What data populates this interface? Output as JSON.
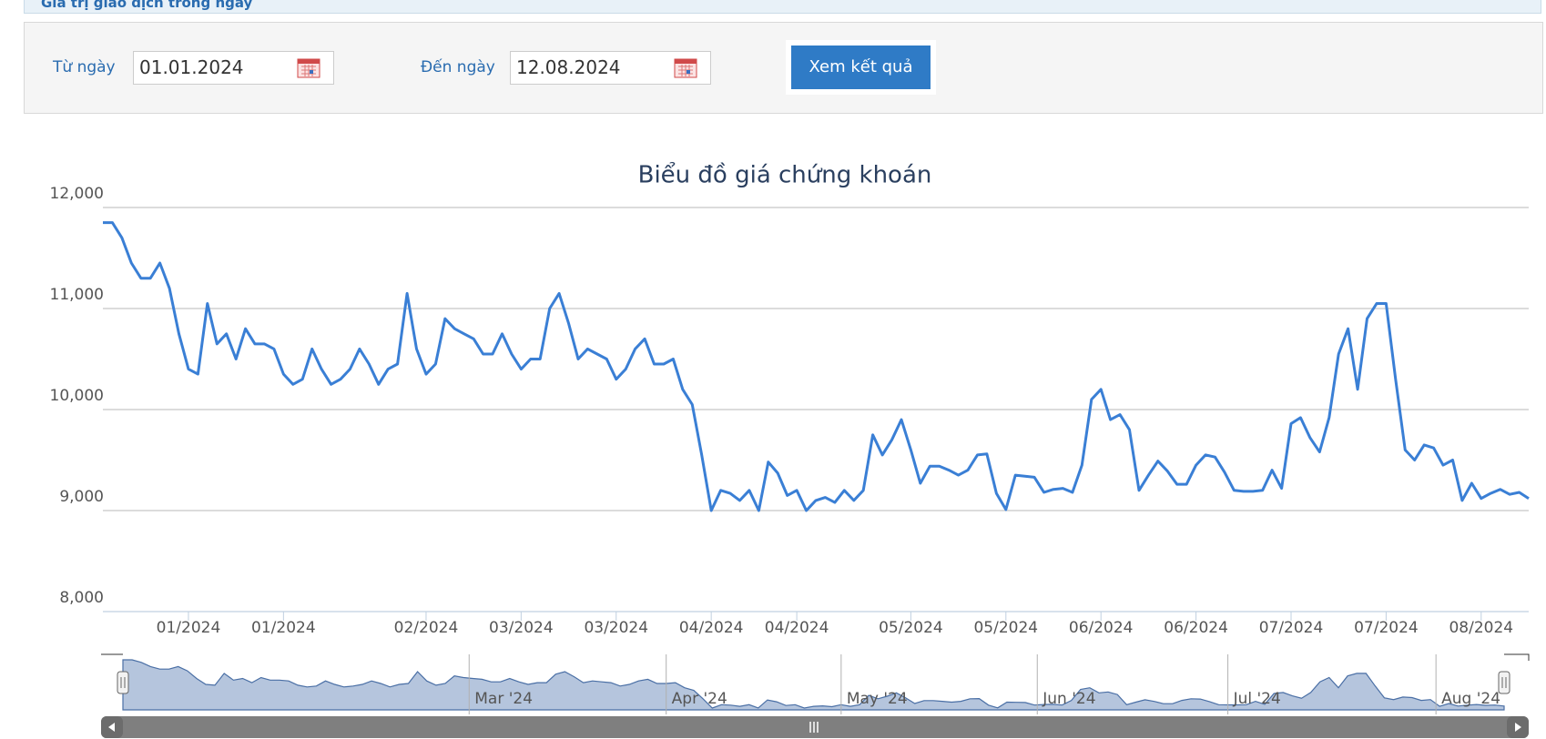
{
  "header": {
    "label": "Giá trị giao dịch trong ngày"
  },
  "form": {
    "from_label": "Từ ngày",
    "from_value": "01.01.2024",
    "to_label": "Đến ngày",
    "to_value": "12.08.2024",
    "button": "Xem kết quả"
  },
  "chart_data": {
    "type": "line",
    "title": "Biểu đồ giá chứng khoán",
    "color": "#3a7fd5",
    "grid": true,
    "ylim": [
      8000,
      12000
    ],
    "yticks": [
      {
        "value": 8000,
        "label": "8,000"
      },
      {
        "value": 9000,
        "label": "9,000"
      },
      {
        "value": 10000,
        "label": "10,000"
      },
      {
        "value": 11000,
        "label": "11,000"
      },
      {
        "value": 12000,
        "label": "12,000"
      }
    ],
    "categories": [
      null,
      null,
      null,
      null,
      null,
      null,
      null,
      null,
      null,
      "01/2024",
      null,
      null,
      null,
      null,
      null,
      null,
      null,
      null,
      null,
      "01/2024",
      null,
      null,
      null,
      null,
      null,
      null,
      null,
      null,
      null,
      null,
      null,
      null,
      null,
      null,
      "02/2024",
      null,
      null,
      null,
      null,
      null,
      null,
      null,
      null,
      null,
      "03/2024",
      null,
      null,
      null,
      null,
      null,
      null,
      null,
      null,
      null,
      "03/2024",
      null,
      null,
      null,
      null,
      null,
      null,
      null,
      null,
      null,
      "04/2024",
      null,
      null,
      null,
      null,
      null,
      null,
      null,
      null,
      "04/2024",
      null,
      null,
      null,
      null,
      null,
      null,
      null,
      null,
      null,
      null,
      null,
      "05/2024",
      null,
      null,
      null,
      null,
      null,
      null,
      null,
      null,
      null,
      "05/2024",
      null,
      null,
      null,
      null,
      null,
      null,
      null,
      null,
      null,
      "06/2024",
      null,
      null,
      null,
      null,
      null,
      null,
      null,
      null,
      null,
      "06/2024",
      null,
      null,
      null,
      null,
      null,
      null,
      null,
      null,
      null,
      "07/2024",
      null,
      null,
      null,
      null,
      null,
      null,
      null,
      null,
      null,
      "07/2024",
      null,
      null,
      null,
      null,
      null,
      null,
      null,
      null,
      null,
      "08/2024",
      null,
      null,
      null,
      null,
      null
    ],
    "values": [
      11850,
      11850,
      11700,
      11450,
      11300,
      11300,
      11450,
      11200,
      10750,
      10400,
      10350,
      11050,
      10650,
      10750,
      10500,
      10800,
      10650,
      10650,
      10600,
      10350,
      10250,
      10300,
      10600,
      10400,
      10250,
      10300,
      10400,
      10600,
      10450,
      10250,
      10400,
      10450,
      11150,
      10600,
      10350,
      10450,
      10900,
      10800,
      10750,
      10700,
      10550,
      10550,
      10750,
      10550,
      10400,
      10500,
      10500,
      11000,
      11150,
      10850,
      10500,
      10600,
      10550,
      10500,
      10300,
      10400,
      10600,
      10700,
      10450,
      10450,
      10500,
      10200,
      10050,
      9550,
      9000,
      9200,
      9170,
      9100,
      9200,
      9000,
      9480,
      9370,
      9150,
      9200,
      9000,
      9100,
      9130,
      9080,
      9200,
      9100,
      9200,
      9750,
      9550,
      9700,
      9900,
      9600,
      9270,
      9440,
      9440,
      9400,
      9350,
      9400,
      9550,
      9560,
      9170,
      9010,
      9350,
      9340,
      9330,
      9180,
      9210,
      9220,
      9180,
      9450,
      10100,
      10200,
      9900,
      9950,
      9800,
      9200,
      9350,
      9490,
      9390,
      9260,
      9260,
      9450,
      9550,
      9530,
      9380,
      9200,
      9190,
      9190,
      9200,
      9400,
      9220,
      9860,
      9920,
      9720,
      9580,
      9920,
      10550,
      10800,
      10200,
      10900,
      11050,
      11050,
      10300,
      9600,
      9500,
      9650,
      9620,
      9450,
      9500,
      9100,
      9270,
      9120,
      9170,
      9210,
      9160,
      9180,
      9120
    ],
    "navigator_labels": [
      "Mar '24",
      "Apr '24",
      "May '24",
      "Jun '24",
      "Jul '24",
      "Aug '24"
    ]
  }
}
